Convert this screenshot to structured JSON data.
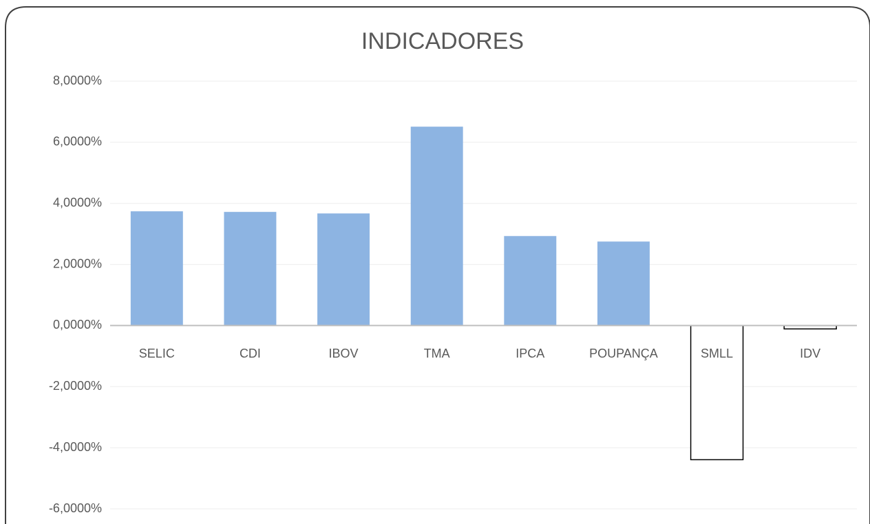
{
  "chart_data": {
    "type": "bar",
    "title": "INDICADORES",
    "categories": [
      "SELIC",
      "CDI",
      "IBOV",
      "TMA",
      "IPCA",
      "POUPANÇA",
      "SMLL",
      "IDV"
    ],
    "values": [
      3.74,
      3.72,
      3.67,
      6.51,
      2.93,
      2.75,
      -4.39,
      -0.11
    ],
    "color": "#8db4e2",
    "negative_color": "#ffffff",
    "negative_edgecolor": "#000000",
    "ylim": [
      -6,
      8
    ],
    "yticks": [
      {
        "value": -6,
        "label": "-6,0000%"
      },
      {
        "value": -4,
        "label": "-4,0000%"
      },
      {
        "value": -2,
        "label": "-2,0000%"
      },
      {
        "value": 0,
        "label": "0,0000%"
      },
      {
        "value": 2,
        "label": "2,0000%"
      },
      {
        "value": 4,
        "label": "4,0000%"
      },
      {
        "value": 6,
        "label": "6,0000%"
      },
      {
        "value": 8,
        "label": "8,0000%"
      }
    ],
    "grid": true
  }
}
